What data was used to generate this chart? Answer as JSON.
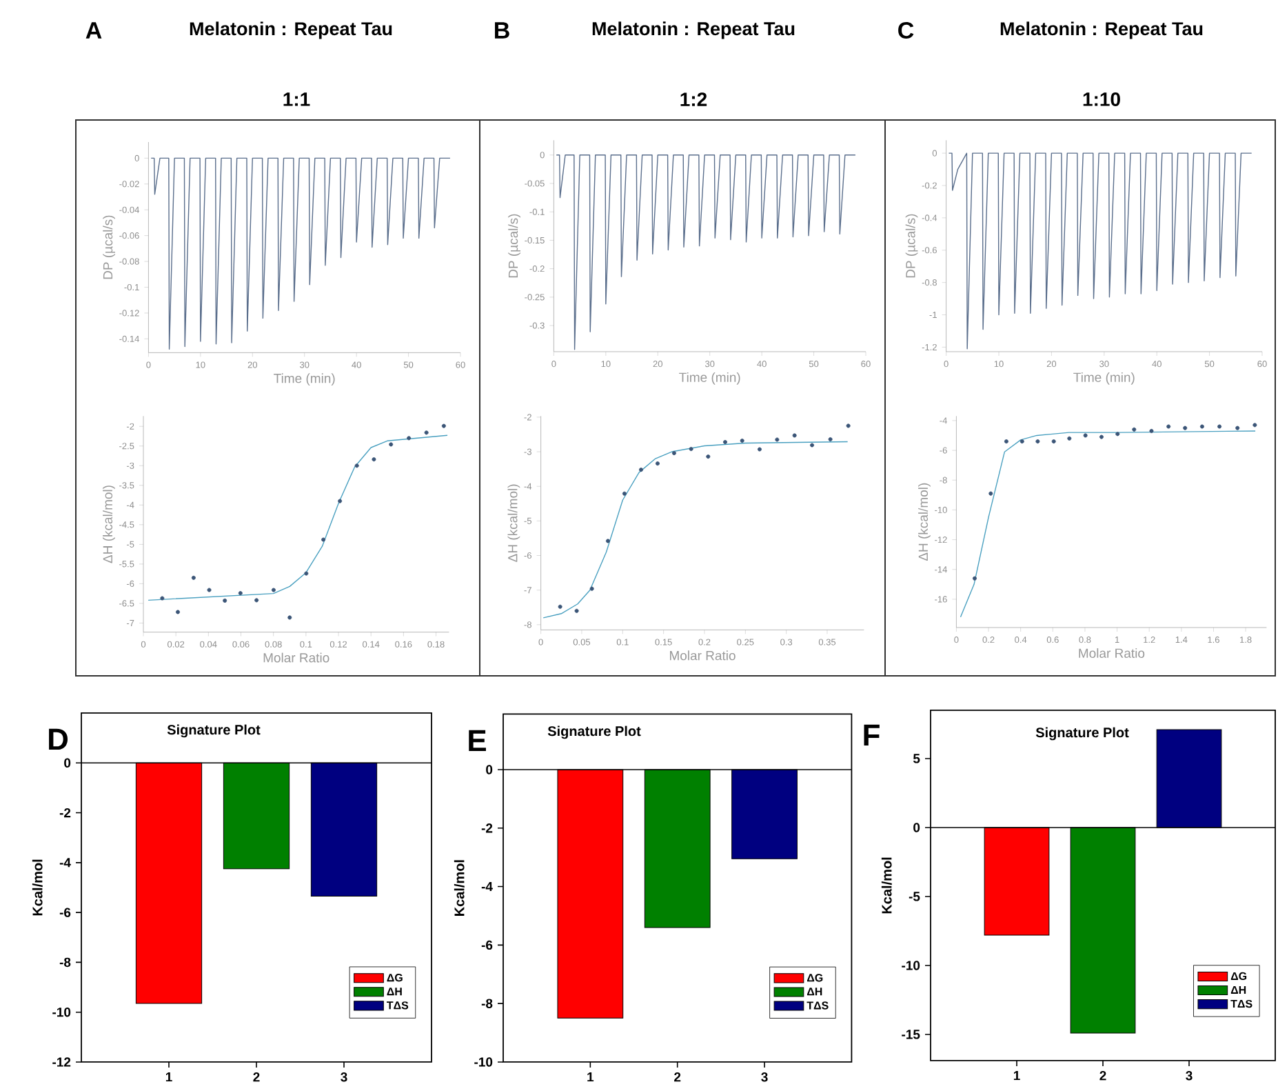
{
  "chart_data": [
    {
      "type": "line",
      "title": "Melatonin : Repeat Tau",
      "subtitle": "1:1",
      "annotations": [
        "A"
      ],
      "xlabel": "Time (min)",
      "ylabel": "DP (µcal/s)",
      "color": "#5a6e8c",
      "x": [
        0.5,
        1.1,
        1.2,
        2.2,
        3.9,
        4,
        5,
        6.9,
        7,
        8,
        9.9,
        10,
        11,
        12.9,
        13,
        14,
        15.9,
        16,
        17,
        18.9,
        19,
        20,
        21.9,
        22,
        23,
        24.9,
        25,
        26,
        27.9,
        28,
        29,
        30.9,
        31,
        32,
        33.9,
        34,
        35,
        36.9,
        37,
        38,
        39.9,
        40,
        41,
        42.9,
        43,
        44,
        45.9,
        46,
        47,
        48.9,
        49,
        50,
        51.9,
        52,
        53,
        54.9,
        55,
        56,
        58
      ],
      "values": [
        0,
        0,
        -0.028,
        0,
        0,
        -0.148,
        0,
        0,
        -0.146,
        0,
        0,
        -0.142,
        0,
        0,
        -0.144,
        0,
        0,
        -0.143,
        0,
        0,
        -0.134,
        0,
        0,
        -0.124,
        0,
        0,
        -0.118,
        0,
        0,
        -0.111,
        0,
        0,
        -0.098,
        0,
        0,
        -0.083,
        0,
        0,
        -0.077,
        0,
        0,
        -0.065,
        0,
        0,
        -0.069,
        0,
        0,
        -0.067,
        0,
        0,
        -0.062,
        0,
        0,
        -0.062,
        0,
        0,
        -0.054,
        0,
        0
      ],
      "xlim": [
        0,
        60
      ],
      "ylim": [
        -0.1507,
        0.0125
      ],
      "xticks": [
        0,
        10,
        20,
        30,
        40,
        50,
        60
      ],
      "yticks": [
        0,
        -0.02,
        -0.04,
        -0.06,
        -0.08,
        -0.1,
        -0.12,
        -0.14
      ]
    },
    {
      "type": "line",
      "title": "Melatonin : Repeat Tau",
      "subtitle": "1:2",
      "annotations": [
        "B"
      ],
      "xlabel": "Time (min)",
      "ylabel": "DP (µcal/s)",
      "color": "#5a6e8c",
      "x": [
        0.5,
        1.1,
        1.2,
        2.2,
        3.9,
        4,
        5,
        6.9,
        7,
        8,
        9.9,
        10,
        11,
        12.9,
        13,
        14,
        15.9,
        16,
        17,
        18.9,
        19,
        20,
        21.9,
        22,
        23,
        24.9,
        25,
        26,
        27.9,
        28,
        29,
        30.9,
        31,
        32,
        33.9,
        34,
        35,
        36.9,
        37,
        38,
        39.9,
        40,
        41,
        42.9,
        43,
        44,
        45.9,
        46,
        47,
        48.9,
        49,
        50,
        51.9,
        52,
        53,
        54.9,
        55,
        56,
        58
      ],
      "values": [
        0,
        0,
        -0.075,
        0,
        0,
        -0.342,
        0,
        0,
        -0.311,
        0,
        0,
        -0.262,
        0,
        0,
        -0.214,
        0,
        0,
        -0.185,
        0,
        0,
        -0.174,
        0,
        0,
        -0.167,
        0,
        0,
        -0.162,
        0,
        0,
        -0.16,
        0,
        0,
        -0.146,
        0,
        0,
        -0.149,
        0,
        0,
        -0.153,
        0,
        0,
        -0.146,
        0,
        0,
        -0.146,
        0,
        0,
        -0.144,
        0,
        0,
        -0.142,
        0,
        0,
        -0.135,
        0,
        0,
        -0.139,
        0,
        0
      ],
      "xlim": [
        0,
        60
      ],
      "ylim": [
        -0.346,
        0.026
      ],
      "xticks": [
        0,
        10,
        20,
        30,
        40,
        50,
        60
      ],
      "yticks": [
        0,
        -0.05,
        -0.1,
        -0.15,
        -0.2,
        -0.25,
        -0.3
      ]
    },
    {
      "type": "line",
      "title": "Melatonin : Repeat Tau",
      "subtitle": "1:10",
      "annotations": [
        "C"
      ],
      "xlabel": "Time (min)",
      "ylabel": "DP (µcal/s)",
      "color": "#5a6e8c",
      "x": [
        0.5,
        1.1,
        1.2,
        2.2,
        3.9,
        4,
        5,
        6.9,
        7,
        8,
        9.9,
        10,
        11,
        12.9,
        13,
        14,
        15.9,
        16,
        17,
        18.9,
        19,
        20,
        21.9,
        22,
        23,
        24.9,
        25,
        26,
        27.9,
        28,
        29,
        30.9,
        31,
        32,
        33.9,
        34,
        35,
        36.9,
        37,
        38,
        39.9,
        40,
        41,
        42.9,
        43,
        44,
        45.9,
        46,
        47,
        48.9,
        49,
        50,
        51.9,
        52,
        53,
        54.9,
        55,
        56,
        58
      ],
      "values": [
        0,
        0,
        -0.23,
        -0.1,
        0,
        -1.21,
        0,
        0,
        -1.09,
        0,
        0,
        -1.0,
        0,
        0,
        -0.99,
        0,
        0,
        -0.99,
        0,
        0,
        -0.96,
        0,
        0,
        -0.94,
        0,
        0,
        -0.88,
        0,
        0,
        -0.9,
        0,
        0,
        -0.89,
        0,
        0,
        -0.87,
        0,
        0,
        -0.87,
        0,
        0,
        -0.85,
        0,
        0,
        -0.81,
        0,
        0,
        -0.8,
        0,
        0,
        -0.79,
        0,
        0,
        -0.77,
        0,
        0,
        -0.76,
        0,
        0
      ],
      "xlim": [
        0,
        60
      ],
      "ylim": [
        -1.228,
        0.08
      ],
      "xticks": [
        0,
        10,
        20,
        30,
        40,
        50,
        60
      ],
      "yticks": [
        0,
        -0.2,
        -0.4,
        -0.6,
        -0.8,
        -1,
        -1.2
      ]
    },
    {
      "type": "scatter",
      "xlabel": "Molar Ratio",
      "ylabel": "ΔH (kcal/mol)",
      "series": [
        {
          "type": "scatter",
          "marker": "circle",
          "color": "#3b5577",
          "x": [
            0.0116,
            0.0212,
            0.0309,
            0.0405,
            0.0501,
            0.0597,
            0.0696,
            0.0801,
            0.09,
            0.1002,
            0.1107,
            0.1209,
            0.1313,
            0.1418,
            0.1523,
            0.1633,
            0.1741,
            0.1848
          ],
          "values": [
            -6.37,
            -6.72,
            -5.85,
            -6.16,
            -6.43,
            -6.24,
            -6.42,
            -6.16,
            -6.86,
            -5.74,
            -4.88,
            -3.9,
            -3.0,
            -2.84,
            -2.46,
            -2.3,
            -2.16,
            -1.99
          ]
        },
        {
          "type": "line",
          "color": "#4aa0c0",
          "x": [
            0.003,
            0.08,
            0.09,
            0.1,
            0.11,
            0.12,
            0.13,
            0.14,
            0.15,
            0.187
          ],
          "values": [
            -6.42,
            -6.25,
            -6.07,
            -5.72,
            -5.05,
            -3.96,
            -3.03,
            -2.54,
            -2.37,
            -2.23
          ]
        }
      ],
      "xlim": [
        0,
        0.188
      ],
      "ylim": [
        -7.23,
        -1.74
      ],
      "xticks": [
        0,
        0.02,
        0.04,
        0.06,
        0.08,
        0.1,
        0.12,
        0.14,
        0.16,
        0.18
      ],
      "yticks": [
        -2,
        -2.5,
        -3,
        -3.5,
        -4,
        -4.5,
        -5,
        -5.5,
        -6,
        -6.5,
        -7
      ]
    },
    {
      "type": "scatter",
      "xlabel": "Molar Ratio",
      "ylabel": "ΔH (kcal/mol)",
      "series": [
        {
          "type": "scatter",
          "marker": "circle",
          "color": "#3b5577",
          "x": [
            0.0236,
            0.0438,
            0.0624,
            0.082,
            0.1022,
            0.1225,
            0.1427,
            0.1629,
            0.1837,
            0.2045,
            0.2253,
            0.2461,
            0.2674,
            0.2888,
            0.3101,
            0.3315,
            0.3539,
            0.3758
          ],
          "values": [
            -7.48,
            -7.6,
            -6.96,
            -5.58,
            -4.21,
            -3.52,
            -3.34,
            -3.04,
            -2.92,
            -3.14,
            -2.72,
            -2.68,
            -2.93,
            -2.65,
            -2.53,
            -2.81,
            -2.64,
            -2.25
          ]
        },
        {
          "type": "line",
          "color": "#4aa0c0",
          "x": [
            0.003,
            0.025,
            0.045,
            0.06,
            0.08,
            0.1,
            0.12,
            0.14,
            0.16,
            0.2,
            0.25,
            0.375
          ],
          "values": [
            -7.8,
            -7.68,
            -7.4,
            -7.0,
            -5.9,
            -4.4,
            -3.6,
            -3.2,
            -3.0,
            -2.83,
            -2.75,
            -2.71
          ]
        }
      ],
      "xlim": [
        0,
        0.395
      ],
      "ylim": [
        -8.15,
        -1.97
      ],
      "xticks": [
        0,
        0.05,
        0.1,
        0.15,
        0.2,
        0.25,
        0.3,
        0.35
      ],
      "yticks": [
        -2,
        -3,
        -4,
        -5,
        -6,
        -7,
        -8
      ]
    },
    {
      "type": "scatter",
      "xlabel": "Molar Ratio",
      "ylabel": "ΔH (kcal/mol)",
      "series": [
        {
          "type": "scatter",
          "marker": "circle",
          "color": "#3b5577",
          "x": [
            0.114,
            0.214,
            0.311,
            0.409,
            0.506,
            0.606,
            0.703,
            0.803,
            0.903,
            1.003,
            1.106,
            1.214,
            1.32,
            1.423,
            1.529,
            1.637,
            1.749,
            1.857
          ],
          "values": [
            -14.6,
            -8.9,
            -5.4,
            -5.4,
            -5.4,
            -5.4,
            -5.2,
            -5.0,
            -5.1,
            -4.9,
            -4.6,
            -4.7,
            -4.4,
            -4.5,
            -4.4,
            -4.4,
            -4.5,
            -4.3
          ]
        },
        {
          "type": "line",
          "color": "#4aa0c0",
          "x": [
            0.026,
            0.11,
            0.2,
            0.3,
            0.4,
            0.5,
            0.7,
            1.0,
            1.86
          ],
          "values": [
            -17.2,
            -15.0,
            -10.5,
            -6.1,
            -5.3,
            -5.0,
            -4.8,
            -4.8,
            -4.7
          ]
        }
      ],
      "xlim": [
        0,
        1.93
      ],
      "ylim": [
        -17.9,
        -3.7
      ],
      "xticks": [
        0,
        0.2,
        0.4,
        0.6,
        0.8,
        1,
        1.2,
        1.4,
        1.6,
        1.8
      ],
      "yticks": [
        -4,
        -6,
        -8,
        -10,
        -12,
        -14,
        -16
      ]
    },
    {
      "type": "bar",
      "title": "Signature Plot",
      "annotations": [
        "D"
      ],
      "ylabel": "Kcal/mol",
      "categories": [
        "1",
        "2",
        "3"
      ],
      "legend": "bottom right",
      "series": [
        {
          "name": "ΔG",
          "color": "#ff0000",
          "values": [
            -9.65,
            null,
            null
          ]
        },
        {
          "name": "ΔH",
          "color": "#008000",
          "values": [
            null,
            -4.25,
            null
          ]
        },
        {
          "name": "TΔS",
          "color": "#000080",
          "values": [
            null,
            null,
            -5.35
          ]
        }
      ],
      "ylim": [
        -12,
        2
      ],
      "yticks": [
        0,
        -2,
        -4,
        -6,
        -8,
        -10,
        -12
      ],
      "ref_lines": [
        {
          "axis": "y",
          "value": 0,
          "color": "#000000"
        }
      ]
    },
    {
      "type": "bar",
      "title": "Signature Plot",
      "annotations": [
        "E"
      ],
      "ylabel": "Kcal/mol",
      "categories": [
        "1",
        "2",
        "3"
      ],
      "legend": "bottom right",
      "series": [
        {
          "name": "ΔG",
          "color": "#ff0000",
          "values": [
            -8.5,
            null,
            null
          ]
        },
        {
          "name": "ΔH",
          "color": "#008000",
          "values": [
            null,
            -5.4,
            null
          ]
        },
        {
          "name": "TΔS",
          "color": "#000080",
          "values": [
            null,
            null,
            -3.05
          ]
        }
      ],
      "ylim": [
        -10,
        1.9
      ],
      "yticks": [
        0,
        -2,
        -4,
        -6,
        -8,
        -10
      ],
      "ref_lines": [
        {
          "axis": "y",
          "value": 0,
          "color": "#000000"
        }
      ]
    },
    {
      "type": "bar",
      "title": "Signature Plot",
      "annotations": [
        "F"
      ],
      "ylabel": "Kcal/mol",
      "categories": [
        "1",
        "2",
        "3"
      ],
      "legend": "bottom right",
      "series": [
        {
          "name": "ΔG",
          "color": "#ff0000",
          "values": [
            -7.8,
            null,
            null
          ]
        },
        {
          "name": "ΔH",
          "color": "#008000",
          "values": [
            null,
            -14.9,
            null
          ]
        },
        {
          "name": "TΔS",
          "color": "#000080",
          "values": [
            null,
            null,
            7.1
          ]
        }
      ],
      "ylim": [
        -16.9,
        8.5
      ],
      "yticks": [
        5,
        0,
        -5,
        -10,
        -15
      ],
      "ref_lines": [
        {
          "axis": "y",
          "value": 0,
          "color": "#000000"
        }
      ]
    }
  ]
}
